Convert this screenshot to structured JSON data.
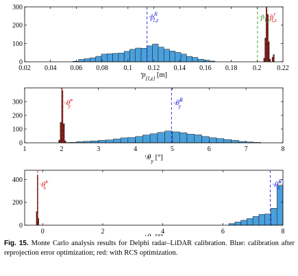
{
  "chart_data": [
    {
      "type": "bar",
      "subtype": "histogram",
      "xlabel": "ʳp_{l,z} [m]",
      "xlim": [
        0.02,
        0.22
      ],
      "ylim": [
        0,
        300
      ],
      "yticks": [
        0,
        100,
        200,
        300
      ],
      "xticks": [
        0.02,
        0.04,
        0.06,
        0.08,
        0.1,
        0.12,
        0.14,
        0.16,
        0.18,
        0.2,
        0.22
      ],
      "xtick_labels": [
        "0.02",
        "0.04",
        "0.06",
        "0.08",
        "0.1",
        "0.12",
        "0.14",
        "0.16",
        "0.18",
        "0.2",
        "0.22"
      ],
      "grid": false,
      "series": [
        {
          "color": "#4aa0dc",
          "bin_width": 0.0044,
          "bins": [
            {
              "x": 0.0596,
              "count": 3
            },
            {
              "x": 0.064,
              "count": 13
            },
            {
              "x": 0.0684,
              "count": 17
            },
            {
              "x": 0.0728,
              "count": 22
            },
            {
              "x": 0.0772,
              "count": 30
            },
            {
              "x": 0.0816,
              "count": 42
            },
            {
              "x": 0.086,
              "count": 44
            },
            {
              "x": 0.0904,
              "count": 46
            },
            {
              "x": 0.0948,
              "count": 48
            },
            {
              "x": 0.0992,
              "count": 57
            },
            {
              "x": 0.1036,
              "count": 68
            },
            {
              "x": 0.108,
              "count": 75
            },
            {
              "x": 0.1124,
              "count": 74
            },
            {
              "x": 0.1168,
              "count": 87
            },
            {
              "x": 0.1212,
              "count": 97
            },
            {
              "x": 0.1256,
              "count": 80
            },
            {
              "x": 0.13,
              "count": 69
            },
            {
              "x": 0.1344,
              "count": 59
            },
            {
              "x": 0.1388,
              "count": 51
            },
            {
              "x": 0.1432,
              "count": 42
            },
            {
              "x": 0.1476,
              "count": 29
            },
            {
              "x": 0.152,
              "count": 24
            },
            {
              "x": 0.1564,
              "count": 14
            },
            {
              "x": 0.1608,
              "count": 9
            },
            {
              "x": 0.1652,
              "count": 4
            }
          ]
        },
        {
          "color": "#7a1f16",
          "bin_width": 0.0009,
          "bins": [
            {
              "x": 0.2055,
              "count": 20
            },
            {
              "x": 0.2064,
              "count": 130
            },
            {
              "x": 0.2073,
              "count": 300
            },
            {
              "x": 0.2082,
              "count": 260
            },
            {
              "x": 0.2091,
              "count": 110
            },
            {
              "x": 0.21,
              "count": 15
            },
            {
              "x": 0.212,
              "count": 25
            },
            {
              "x": 0.2129,
              "count": 40
            }
          ]
        }
      ],
      "annotations": [
        {
          "label_prefix": "ʳ",
          "label": "p̂",
          "sup": "R",
          "sub": "l,z",
          "x": 0.1148,
          "color": "#2222dd"
        },
        {
          "label_prefix": "ʳ",
          "label": "p̃",
          "sup": "",
          "sub": "l,z",
          "x": 0.2003,
          "color": "#3a9a2a"
        },
        {
          "label_prefix": "ʳ",
          "label": "p̂",
          "sup": "r",
          "sub": "l,z",
          "x": 0.2073,
          "color": "#dd2222"
        }
      ]
    },
    {
      "type": "bar",
      "subtype": "histogram",
      "xlabel": "ʳₗθ_y [°]",
      "xlim": [
        1,
        8
      ],
      "ylim": [
        0,
        400
      ],
      "yticks": [
        0,
        100,
        200,
        300
      ],
      "xticks": [
        1,
        2,
        3,
        4,
        5,
        6,
        7,
        8
      ],
      "xtick_labels": [
        "1",
        "2",
        "3",
        "4",
        "5",
        "6",
        "7",
        "8"
      ],
      "grid": false,
      "series": [
        {
          "color": "#4aa0dc",
          "bin_width": 0.2,
          "bins": [
            {
              "x": 2.1,
              "count": 2
            },
            {
              "x": 2.3,
              "count": 3
            },
            {
              "x": 2.5,
              "count": 8
            },
            {
              "x": 2.7,
              "count": 11
            },
            {
              "x": 2.9,
              "count": 14
            },
            {
              "x": 3.1,
              "count": 18
            },
            {
              "x": 3.3,
              "count": 21
            },
            {
              "x": 3.5,
              "count": 28
            },
            {
              "x": 3.7,
              "count": 36
            },
            {
              "x": 3.9,
              "count": 38
            },
            {
              "x": 4.1,
              "count": 46
            },
            {
              "x": 4.3,
              "count": 57
            },
            {
              "x": 4.5,
              "count": 66
            },
            {
              "x": 4.7,
              "count": 76
            },
            {
              "x": 4.9,
              "count": 86
            },
            {
              "x": 5.1,
              "count": 80
            },
            {
              "x": 5.3,
              "count": 73
            },
            {
              "x": 5.5,
              "count": 63
            },
            {
              "x": 5.7,
              "count": 58
            },
            {
              "x": 5.9,
              "count": 46
            },
            {
              "x": 6.1,
              "count": 37
            },
            {
              "x": 6.3,
              "count": 31
            },
            {
              "x": 6.5,
              "count": 24
            },
            {
              "x": 6.7,
              "count": 18
            },
            {
              "x": 6.9,
              "count": 10
            },
            {
              "x": 7.1,
              "count": 6
            },
            {
              "x": 7.3,
              "count": 3
            }
          ]
        },
        {
          "color": "#7a1f16",
          "bin_width": 0.04,
          "bins": [
            {
              "x": 1.94,
              "count": 20
            },
            {
              "x": 1.98,
              "count": 150
            },
            {
              "x": 2.02,
              "count": 380
            },
            {
              "x": 2.06,
              "count": 140
            },
            {
              "x": 2.1,
              "count": 15
            }
          ]
        }
      ],
      "annotations": [
        {
          "label_prefix": "ʳₗ",
          "label": "θ̂",
          "sup": "r",
          "sub": "y",
          "x": 2.02,
          "color": "#dd2222"
        },
        {
          "label_prefix": "ʳₗ",
          "label": "θ̂",
          "sup": "R",
          "sub": "y",
          "x": 4.98,
          "color": "#2222dd"
        }
      ]
    },
    {
      "type": "bar",
      "subtype": "histogram",
      "xlabel": "ʳₗθ_x [°]",
      "xlim": [
        -0.6,
        8
      ],
      "ylim": [
        0,
        480
      ],
      "yticks": [
        0,
        200,
        400
      ],
      "xticks": [
        0,
        2,
        4,
        6,
        8
      ],
      "xtick_labels": [
        "0",
        "2",
        "4",
        "6",
        "8"
      ],
      "grid": false,
      "series": [
        {
          "color": "#4aa0dc",
          "bin_width": 0.2,
          "bins": [
            {
              "x": 6.3,
              "count": 14
            },
            {
              "x": 6.5,
              "count": 28
            },
            {
              "x": 6.7,
              "count": 43
            },
            {
              "x": 6.9,
              "count": 58
            },
            {
              "x": 7.1,
              "count": 77
            },
            {
              "x": 7.3,
              "count": 94
            },
            {
              "x": 7.5,
              "count": 98
            },
            {
              "x": 7.7,
              "count": 148
            },
            {
              "x": 7.9,
              "count": 350
            }
          ]
        },
        {
          "color": "#7a1f16",
          "bin_width": 0.03,
          "bins": [
            {
              "x": -0.2,
              "count": 120
            },
            {
              "x": -0.17,
              "count": 440
            },
            {
              "x": -0.14,
              "count": 60
            }
          ]
        }
      ],
      "annotations": [
        {
          "label_prefix": "ʳₗ",
          "label": "θ̂",
          "sup": "r",
          "sub": "x",
          "x": -0.17,
          "color": "#dd2222"
        },
        {
          "label_prefix": "ʳₗ",
          "label": "θ̂",
          "sup": "R",
          "sub": "x",
          "x": 7.58,
          "color": "#2222dd"
        }
      ]
    }
  ],
  "caption": {
    "label": "Fig. 15.",
    "text": "Monte Carlo analysis results for Delphi radar–LiDAR calibration. Blue: calibration after reprojection error optimization; red: with RCS optimization."
  }
}
